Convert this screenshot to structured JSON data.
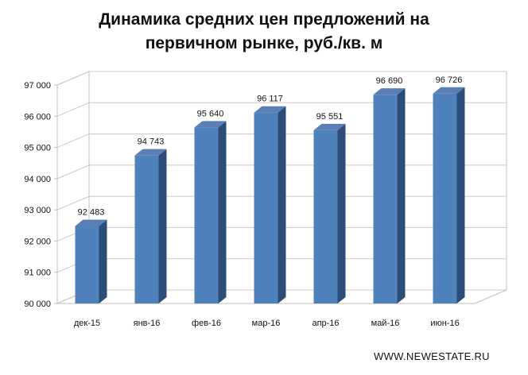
{
  "chart_data": {
    "type": "bar",
    "title_lines": [
      "Динамика средних цен предложений на",
      "первичном рынке, руб./кв. м"
    ],
    "categories": [
      "дек-15",
      "янв-16",
      "фев-16",
      "мар-16",
      "апр-16",
      "май-16",
      "июн-16"
    ],
    "values": [
      92483,
      94743,
      95640,
      96117,
      95551,
      96690,
      96726
    ],
    "value_labels": [
      "92 483",
      "94 743",
      "95 640",
      "96 117",
      "95 551",
      "96 690",
      "96 726"
    ],
    "y_ticks": [
      "90 000",
      "91 000",
      "92 000",
      "93 000",
      "94 000",
      "95 000",
      "96 000",
      "97 000"
    ],
    "ylim": [
      90000,
      97000
    ],
    "grid": true,
    "legend": "none",
    "bar_color": "#4f81bd"
  },
  "source": "WWW.NEWESTATE.RU"
}
